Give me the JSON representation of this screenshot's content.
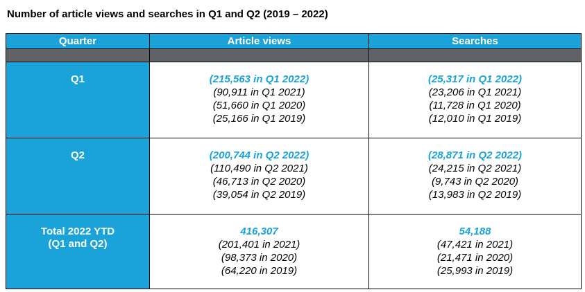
{
  "title": "Number of article views and searches in Q1 and Q2 (2019 – 2022)",
  "colors": {
    "accent": "#1aa3d9",
    "subheader": "#5f6368"
  },
  "headers": {
    "quarter": "Quarter",
    "views": "Article views",
    "searches": "Searches"
  },
  "rows": [
    {
      "label": "Q1",
      "views": {
        "highlight": "(215,563 in Q1 2022)",
        "others": [
          "(90,911 in Q1 2021)",
          "(51,660 in Q1 2020)",
          "(25,166 in Q1 2019)"
        ]
      },
      "searches": {
        "highlight": "(25,317 in Q1 2022)",
        "others": [
          "(23,206 in Q1 2021)",
          "(11,728 in Q1 2020)",
          "(12,010 in Q1 2019)"
        ]
      }
    },
    {
      "label": "Q2",
      "views": {
        "highlight": "(200,744 in Q2 2022)",
        "others": [
          "(110,490 in Q2 2021)",
          "(46,713 in Q2 2020)",
          "(39,054 in Q2 2019)"
        ]
      },
      "searches": {
        "highlight": "(28,871 in Q2 2022)",
        "others": [
          "(24,215 in Q2 2021)",
          "(9,743 in Q2 2020)",
          "(13,983 in Q2 2019)"
        ]
      }
    },
    {
      "label_line1": "Total 2022 YTD",
      "label_line2": "(Q1 and Q2)",
      "views": {
        "highlight": "416,307",
        "others": [
          "(201,401 in 2021)",
          "(98,373 in 2020)",
          "(64,220 in 2019)"
        ]
      },
      "searches": {
        "highlight": "54,188",
        "others": [
          "(47,421 in 2021)",
          "(21,471 in 2020)",
          "(25,993 in 2019)"
        ]
      }
    }
  ]
}
